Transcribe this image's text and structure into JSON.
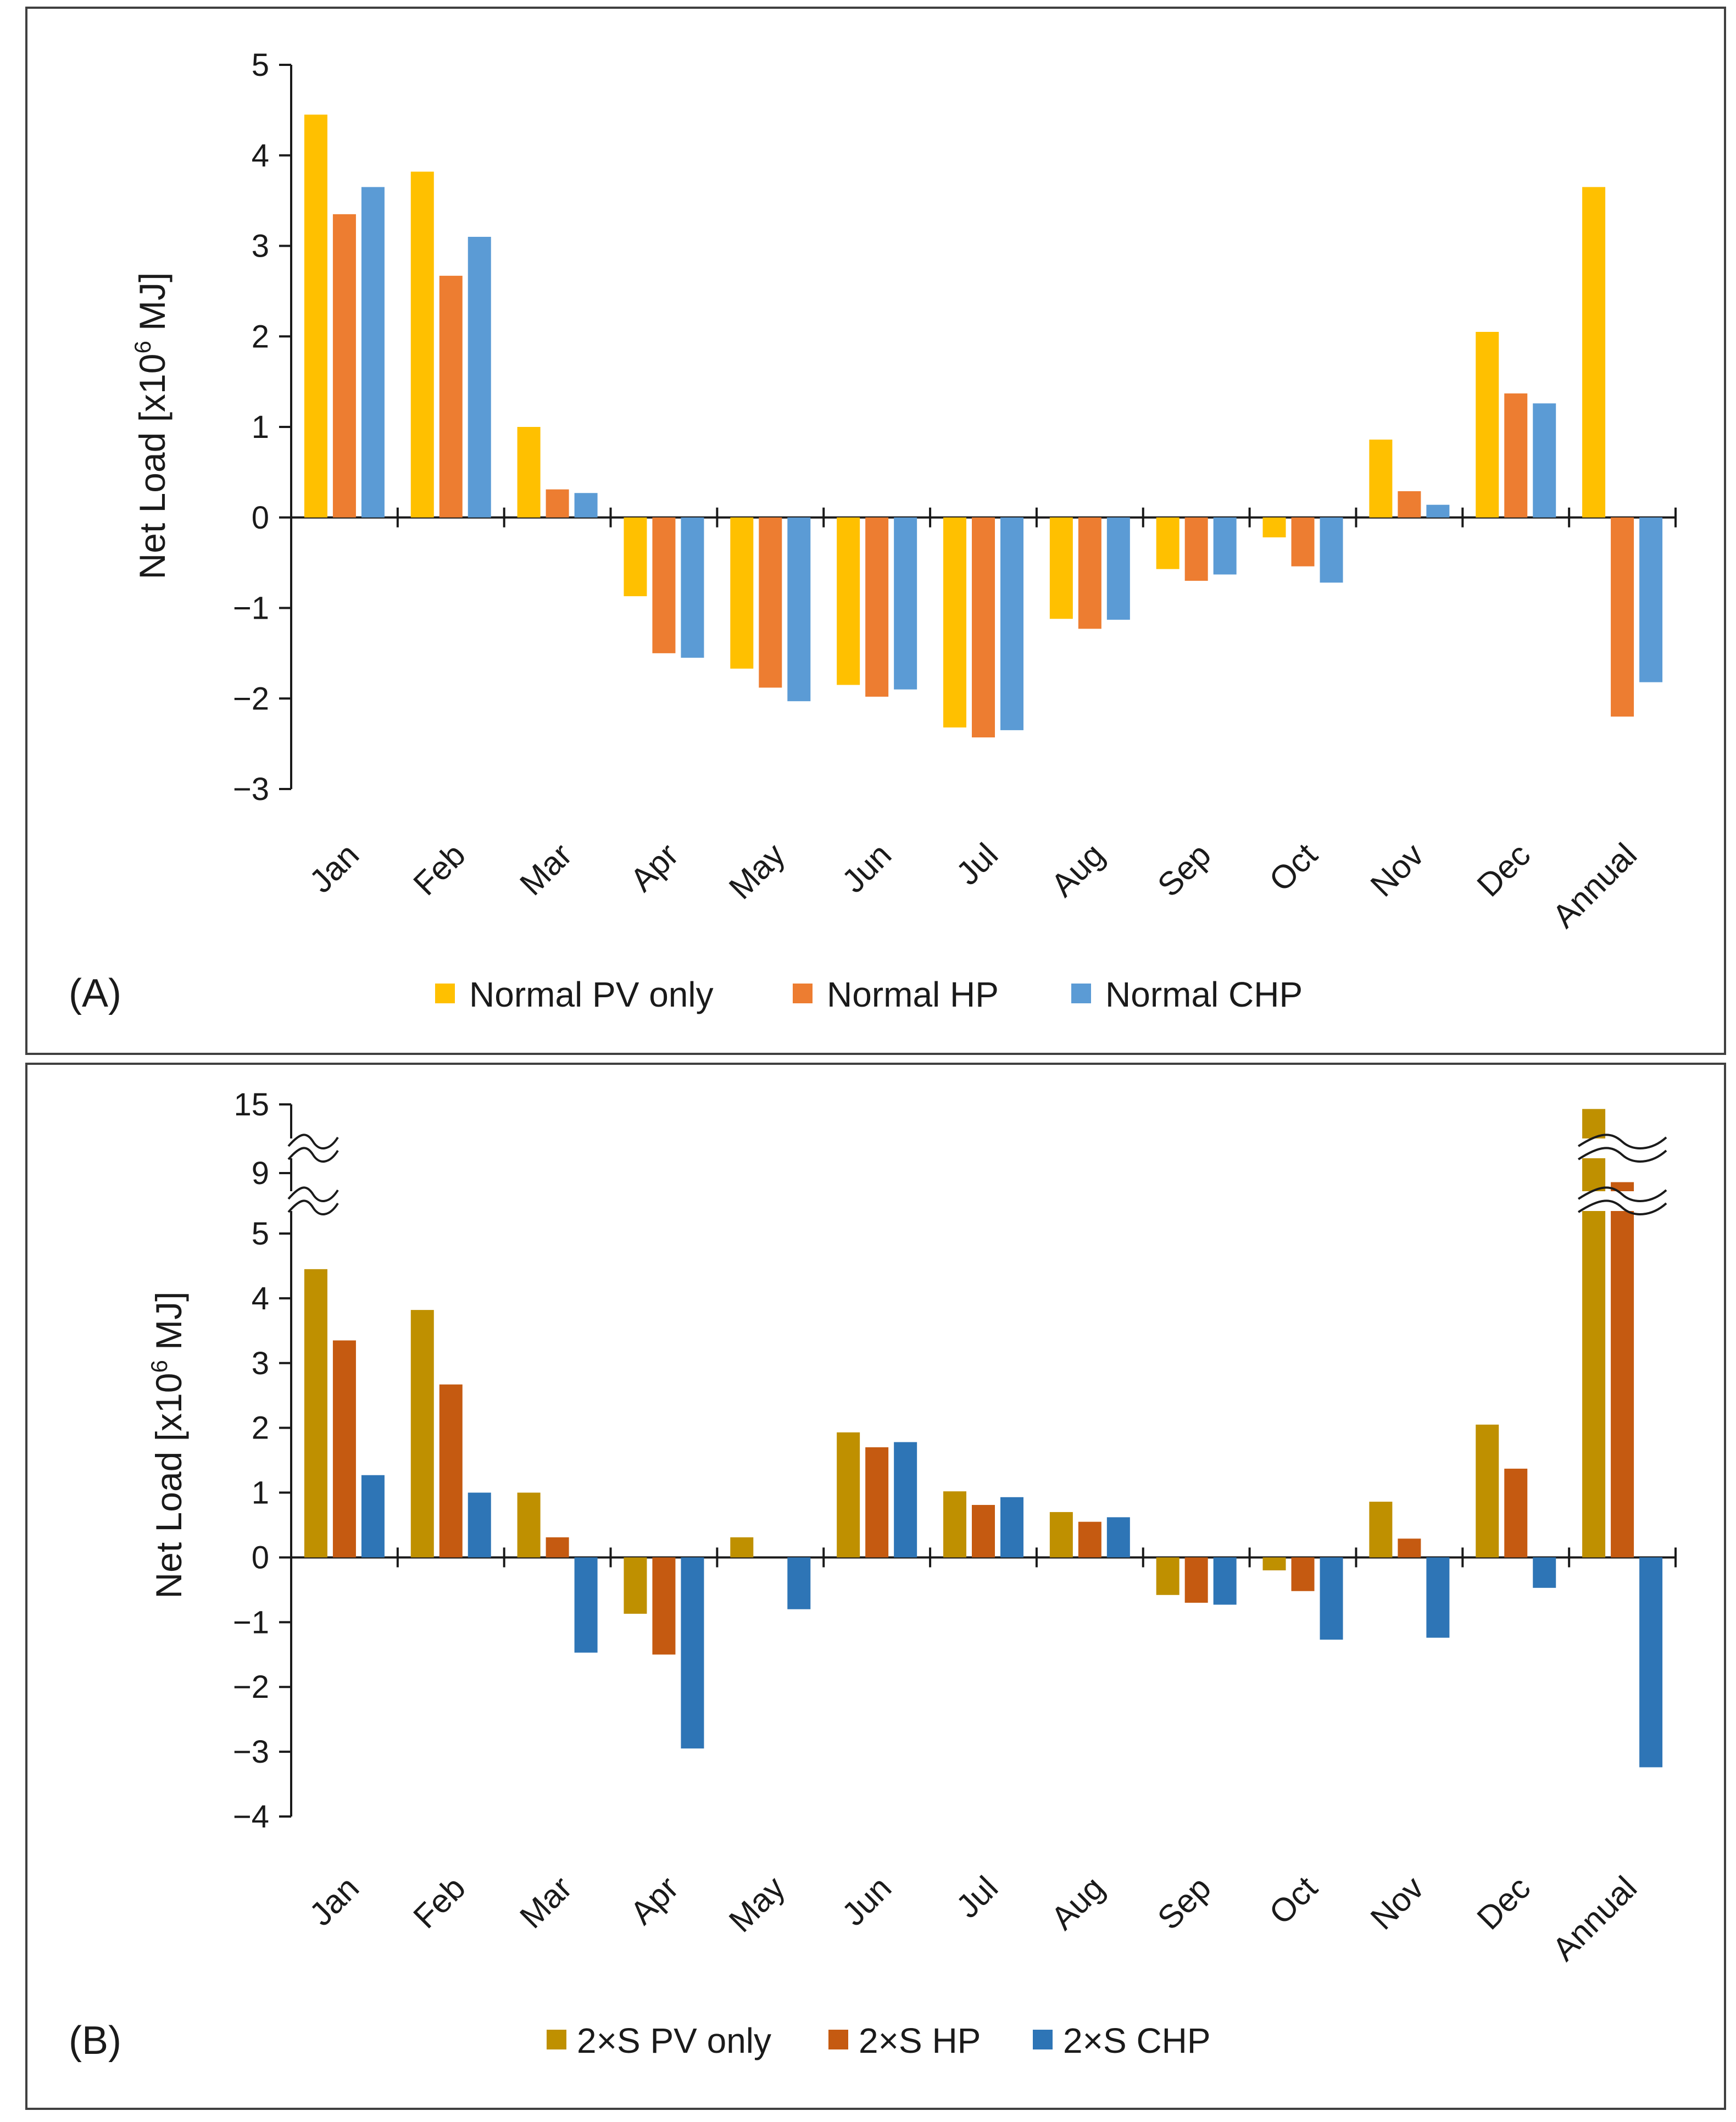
{
  "chart_data": [
    {
      "type": "bar",
      "panel_label": "(A)",
      "ylabel_main": "Net Load [x10",
      "ylabel_sup": "6",
      "ylabel_end": " MJ]",
      "ylim": [
        -3,
        5
      ],
      "yticks": [
        -3,
        -2,
        -1,
        0,
        1,
        2,
        3,
        4,
        5
      ],
      "categories": [
        "Jan",
        "Feb",
        "Mar",
        "Apr",
        "May",
        "Jun",
        "Jul",
        "Aug",
        "Sep",
        "Oct",
        "Nov",
        "Dec",
        "Annual"
      ],
      "series": [
        {
          "name": "Normal PV only",
          "color": "#FFC000",
          "values": [
            4.45,
            3.82,
            1.0,
            -0.87,
            -1.67,
            -1.85,
            -2.32,
            -1.12,
            -0.57,
            -0.22,
            0.86,
            2.05,
            3.65
          ]
        },
        {
          "name": "Normal HP",
          "color": "#ED7D31",
          "values": [
            3.35,
            2.67,
            0.31,
            -1.5,
            -1.88,
            -1.98,
            -2.43,
            -1.23,
            -0.7,
            -0.54,
            0.29,
            1.37,
            -2.2
          ]
        },
        {
          "name": "Normal CHP",
          "color": "#5B9BD5",
          "values": [
            3.65,
            3.1,
            0.27,
            -1.55,
            -2.03,
            -1.9,
            -2.35,
            -1.13,
            -0.63,
            -0.72,
            0.14,
            1.26,
            -1.82
          ]
        }
      ]
    },
    {
      "type": "bar",
      "panel_label": "(B)",
      "ylabel_main": "Net Load [x10",
      "ylabel_sup": "6",
      "ylabel_end": " MJ]",
      "ylim": [
        -4,
        5
      ],
      "yticks": [
        -4,
        -3,
        -2,
        -1,
        0,
        1,
        2,
        3,
        4,
        5
      ],
      "break_ticks": [
        9,
        15
      ],
      "axis_break": "between 5 and 9, and between 9 and 15",
      "categories": [
        "Jan",
        "Feb",
        "Mar",
        "Apr",
        "May",
        "Jun",
        "Jul",
        "Aug",
        "Sep",
        "Oct",
        "Nov",
        "Dec",
        "Annual"
      ],
      "series": [
        {
          "name": "2×S PV only",
          "color": "#BF9000",
          "values": [
            4.45,
            3.82,
            1.0,
            -0.87,
            0.31,
            1.93,
            1.02,
            0.7,
            -0.58,
            -0.2,
            0.86,
            2.05,
            14.6
          ]
        },
        {
          "name": "2×S HP",
          "color": "#C55A11",
          "values": [
            3.35,
            2.67,
            0.31,
            -1.5,
            0.0,
            1.7,
            0.81,
            0.55,
            -0.7,
            -0.52,
            0.29,
            1.37,
            8.4
          ]
        },
        {
          "name": "2×S CHP",
          "color": "#2E75B6",
          "values": [
            1.27,
            1.0,
            -1.47,
            -2.95,
            -0.8,
            1.78,
            0.93,
            0.62,
            -0.73,
            -1.27,
            -1.24,
            -0.47,
            -3.24
          ]
        }
      ]
    }
  ]
}
